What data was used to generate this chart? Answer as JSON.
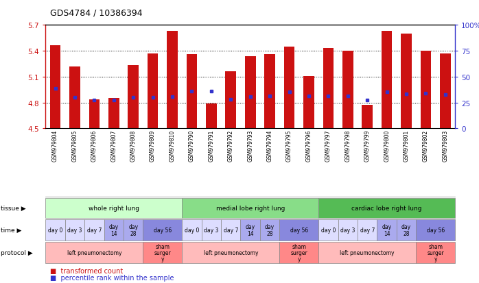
{
  "title": "GDS4784 / 10386394",
  "samples": [
    "GSM979804",
    "GSM979805",
    "GSM979806",
    "GSM979807",
    "GSM979808",
    "GSM979809",
    "GSM979810",
    "GSM979790",
    "GSM979791",
    "GSM979792",
    "GSM979793",
    "GSM979794",
    "GSM979795",
    "GSM979796",
    "GSM979797",
    "GSM979798",
    "GSM979799",
    "GSM979800",
    "GSM979801",
    "GSM979802",
    "GSM979803"
  ],
  "bar_values": [
    5.46,
    5.22,
    4.84,
    4.85,
    5.23,
    5.37,
    5.63,
    5.36,
    4.79,
    5.16,
    5.34,
    5.36,
    5.45,
    5.11,
    5.43,
    5.4,
    4.77,
    5.63,
    5.6,
    5.4,
    5.37
  ],
  "dot_values": [
    4.96,
    4.86,
    4.83,
    4.83,
    4.86,
    4.86,
    4.87,
    4.93,
    4.93,
    4.84,
    4.87,
    4.88,
    4.92,
    4.88,
    4.88,
    4.88,
    4.83,
    4.92,
    4.9,
    4.91,
    4.89
  ],
  "ymin": 4.5,
  "ymax": 5.7,
  "yticks": [
    4.5,
    4.8,
    5.1,
    5.4,
    5.7
  ],
  "ytick_labels": [
    "4.5",
    "4.8",
    "5.1",
    "5.4",
    "5.7"
  ],
  "right_yticks": [
    0,
    25,
    50,
    75,
    100
  ],
  "right_ytick_labels": [
    "0",
    "25",
    "50",
    "75",
    "100%"
  ],
  "bar_color": "#cc1111",
  "dot_color": "#3333cc",
  "tissue_groups": [
    {
      "label": "whole right lung",
      "start": 0,
      "end": 7,
      "color": "#ccffcc"
    },
    {
      "label": "medial lobe right lung",
      "start": 7,
      "end": 14,
      "color": "#88dd88"
    },
    {
      "label": "cardiac lobe right lung",
      "start": 14,
      "end": 21,
      "color": "#55bb55"
    }
  ],
  "time_groups": [
    {
      "label": "day 0",
      "start": 0,
      "end": 1,
      "color": "#ddddff"
    },
    {
      "label": "day 3",
      "start": 1,
      "end": 2,
      "color": "#ddddff"
    },
    {
      "label": "day 7",
      "start": 2,
      "end": 3,
      "color": "#ddddff"
    },
    {
      "label": "day\n14",
      "start": 3,
      "end": 4,
      "color": "#aaaaee"
    },
    {
      "label": "day\n28",
      "start": 4,
      "end": 5,
      "color": "#aaaaee"
    },
    {
      "label": "day 56",
      "start": 5,
      "end": 7,
      "color": "#8888dd"
    },
    {
      "label": "day 0",
      "start": 7,
      "end": 8,
      "color": "#ddddff"
    },
    {
      "label": "day 3",
      "start": 8,
      "end": 9,
      "color": "#ddddff"
    },
    {
      "label": "day 7",
      "start": 9,
      "end": 10,
      "color": "#ddddff"
    },
    {
      "label": "day\n14",
      "start": 10,
      "end": 11,
      "color": "#aaaaee"
    },
    {
      "label": "day\n28",
      "start": 11,
      "end": 12,
      "color": "#aaaaee"
    },
    {
      "label": "day 56",
      "start": 12,
      "end": 14,
      "color": "#8888dd"
    },
    {
      "label": "day 0",
      "start": 14,
      "end": 15,
      "color": "#ddddff"
    },
    {
      "label": "day 3",
      "start": 15,
      "end": 16,
      "color": "#ddddff"
    },
    {
      "label": "day 7",
      "start": 16,
      "end": 17,
      "color": "#ddddff"
    },
    {
      "label": "day\n14",
      "start": 17,
      "end": 18,
      "color": "#aaaaee"
    },
    {
      "label": "day\n28",
      "start": 18,
      "end": 19,
      "color": "#aaaaee"
    },
    {
      "label": "day 56",
      "start": 19,
      "end": 21,
      "color": "#8888dd"
    }
  ],
  "protocol_groups": [
    {
      "label": "left pneumonectomy",
      "start": 0,
      "end": 5,
      "color": "#ffbbbb"
    },
    {
      "label": "sham\nsurger\ny",
      "start": 5,
      "end": 7,
      "color": "#ff8888"
    },
    {
      "label": "left pneumonectomy",
      "start": 7,
      "end": 12,
      "color": "#ffbbbb"
    },
    {
      "label": "sham\nsurger\ny",
      "start": 12,
      "end": 14,
      "color": "#ff8888"
    },
    {
      "label": "left pneumonectomy",
      "start": 14,
      "end": 19,
      "color": "#ffbbbb"
    },
    {
      "label": "sham\nsurger\ny",
      "start": 19,
      "end": 21,
      "color": "#ff8888"
    }
  ],
  "legend_items": [
    {
      "label": "transformed count",
      "color": "#cc1111"
    },
    {
      "label": "percentile rank within the sample",
      "color": "#3333cc"
    }
  ]
}
